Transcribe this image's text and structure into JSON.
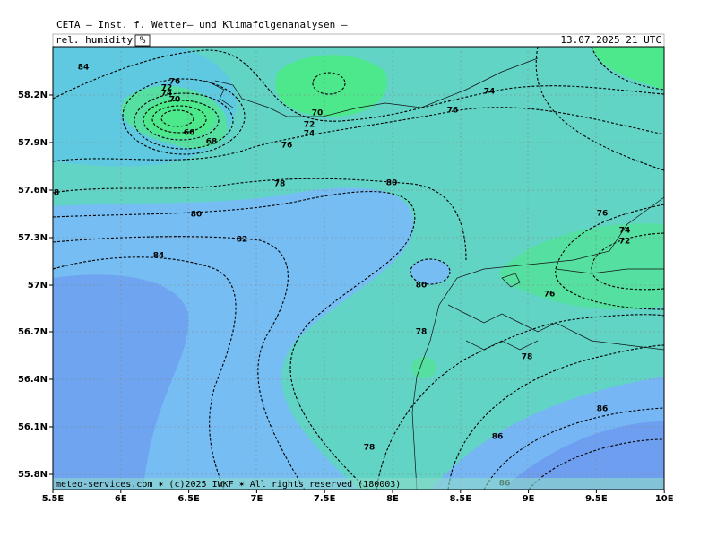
{
  "header": {
    "title": "CETA — Inst. f. Wetter— und Klimafolgenanalysen —",
    "parameter": "rel. humidity",
    "unit": "%",
    "date": "13.07.2025 21 UTC"
  },
  "map": {
    "lat_labels": [
      "58.2N",
      "57.9N",
      "57.6N",
      "57.3N",
      "57N",
      "56.7N",
      "56.4N",
      "56.1N",
      "55.8N"
    ],
    "lon_labels": [
      "5.5E",
      "6E",
      "6.5E",
      "7E",
      "7.5E",
      "8E",
      "8.5E",
      "9E",
      "9.5E",
      "10E"
    ],
    "contour_labels": [
      "84",
      "76",
      "72",
      "74",
      "70",
      "66",
      "68",
      "70",
      "72",
      "74",
      "76",
      "74",
      "76",
      "78",
      "80",
      "80",
      "82",
      "84",
      "8",
      "76",
      "74",
      "72",
      "80",
      "76",
      "78",
      "78",
      "86",
      "86",
      "78",
      "86"
    ],
    "footer": "meteo-services.com ✶ (c)2025 IWKF ✶ All rights reserved (180003)"
  }
}
